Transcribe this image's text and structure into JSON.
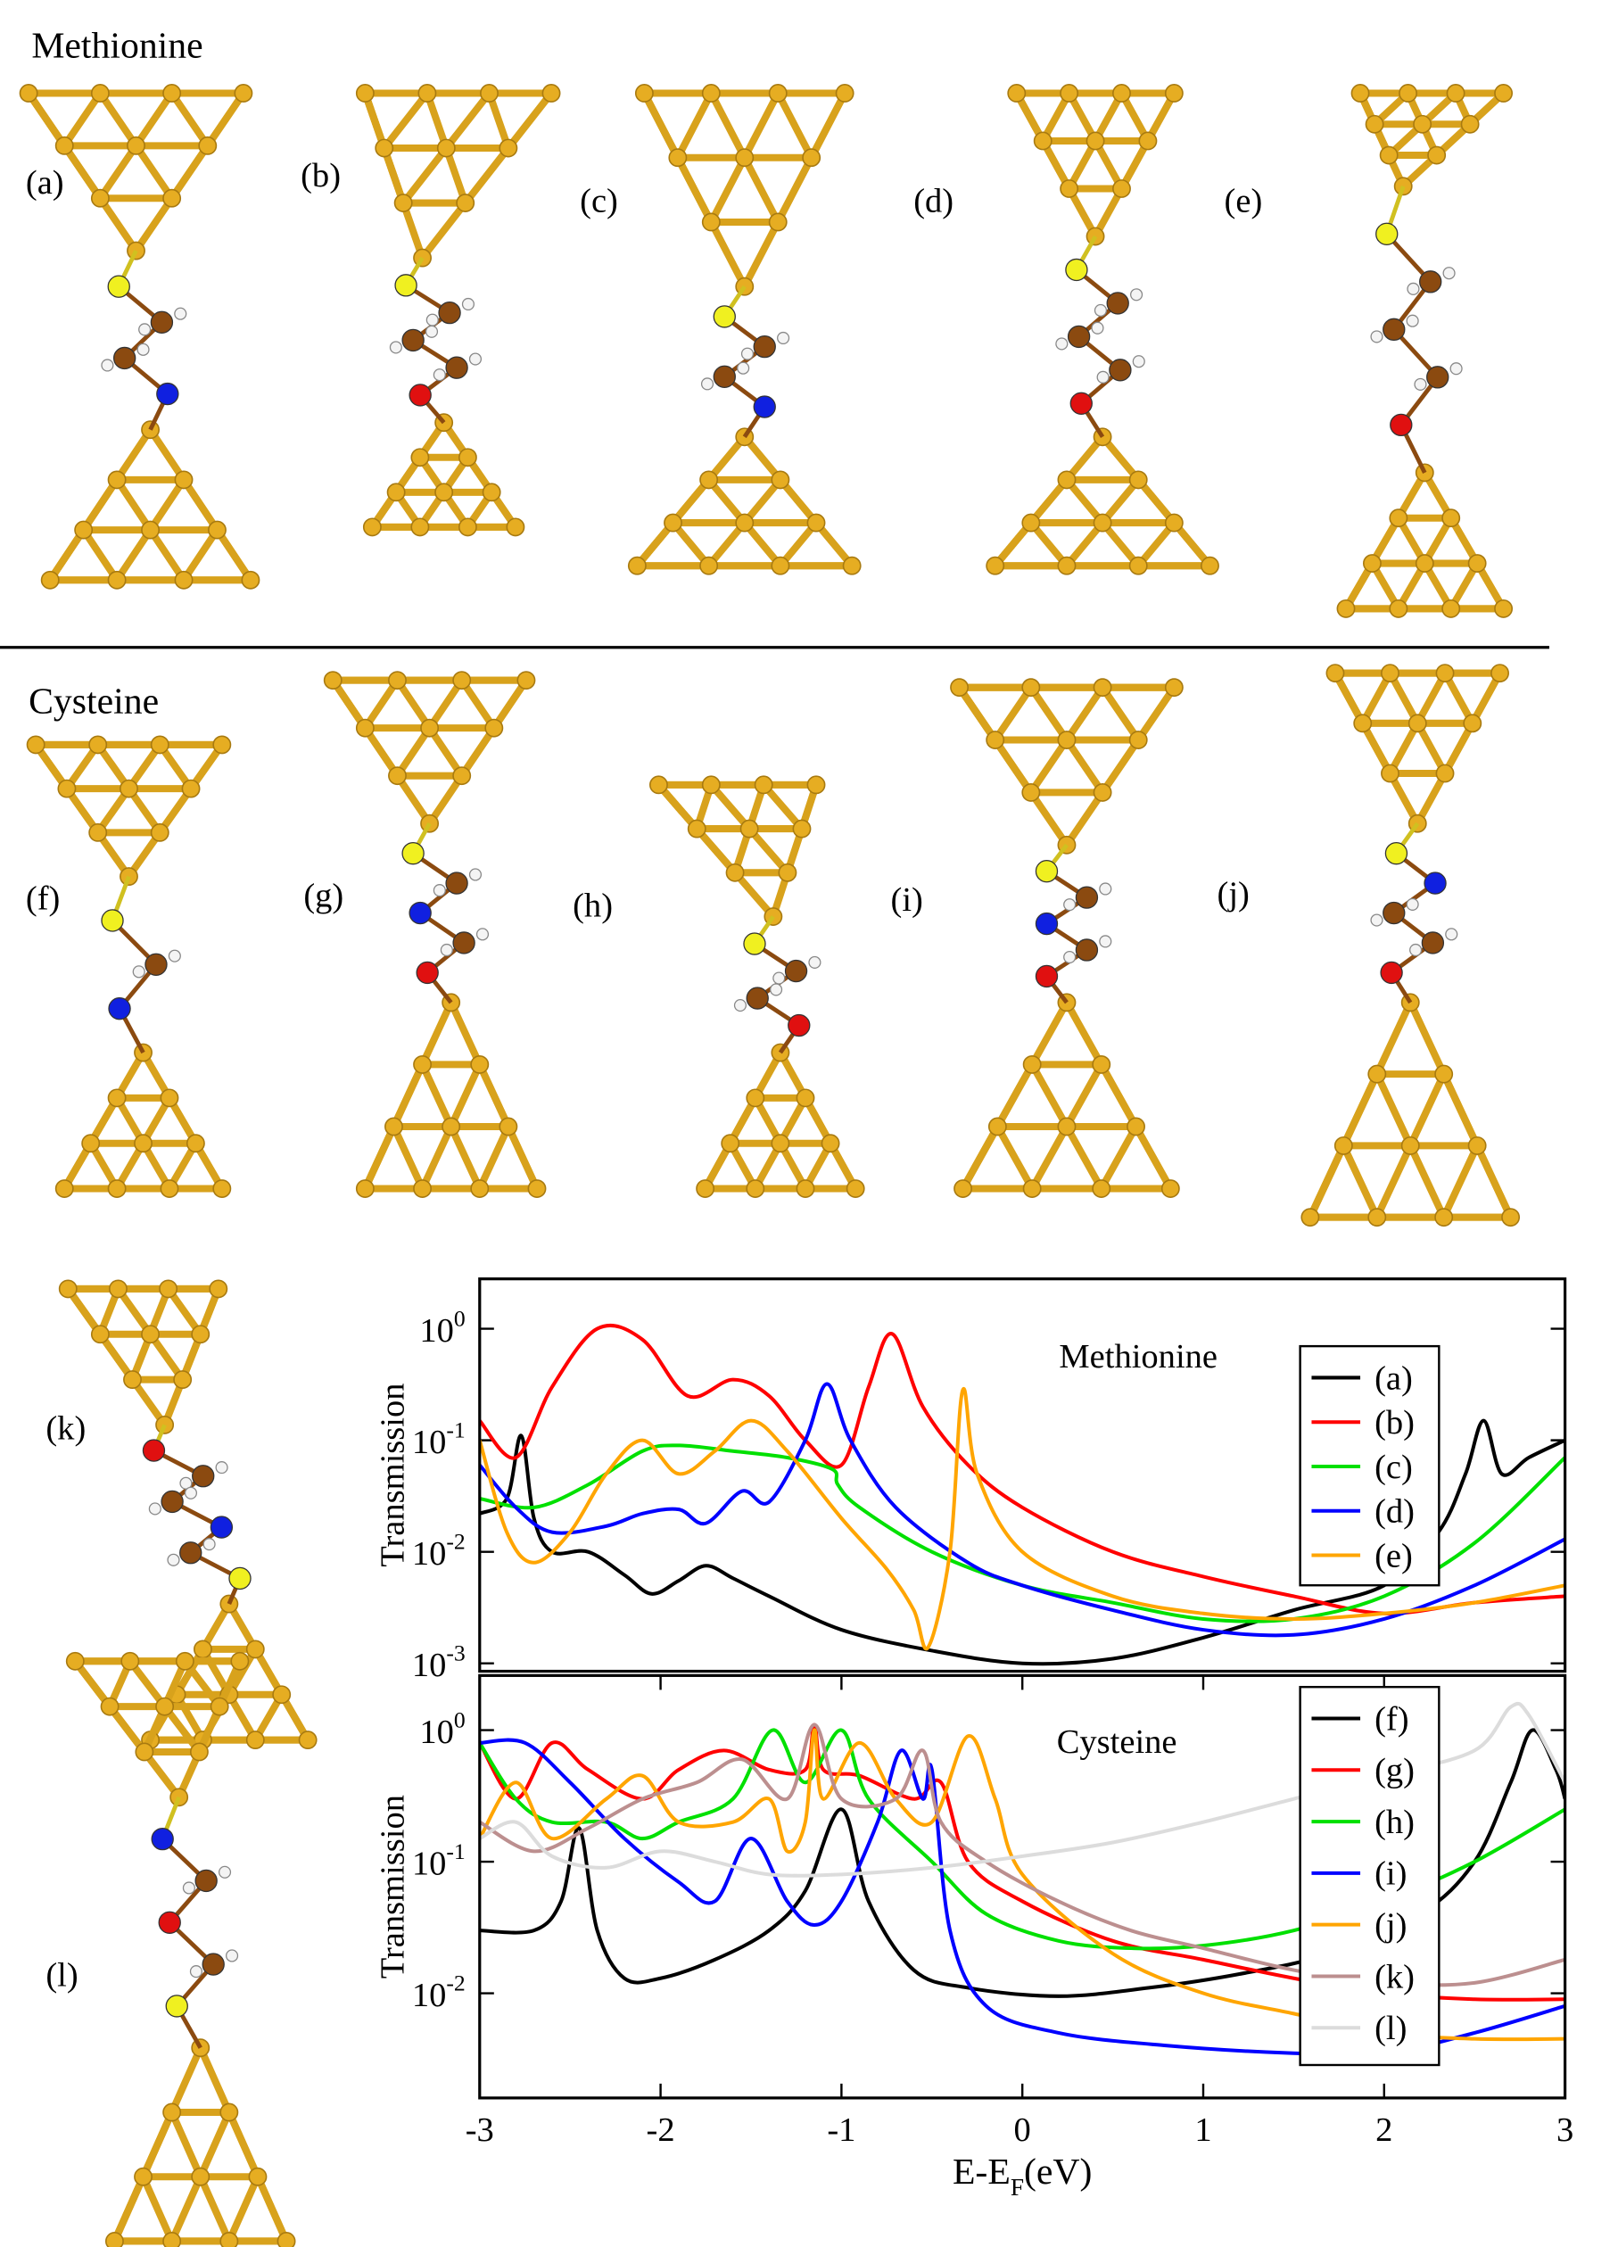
{
  "headings": [
    "Methionine",
    "Cysteine"
  ],
  "panels": [
    "(a)",
    "(b)",
    "(c)",
    "(d)",
    "(e)",
    "(f)",
    "(g)",
    "(h)",
    "(i)",
    "(j)",
    "(k)",
    "(l)"
  ],
  "chart_data": [
    {
      "type": "line",
      "title": "Methionine",
      "ylabel": "Transmission",
      "log_y": true,
      "legend": "upper right",
      "xlim": [
        -3,
        3
      ],
      "ylim": [
        0.00085,
        2.8
      ],
      "yticks": [
        {
          "value": 1,
          "label": "10",
          "power": 0
        },
        {
          "value": 0.1,
          "label": "10",
          "power": -1
        },
        {
          "value": 0.01,
          "label": "10",
          "power": -2
        },
        {
          "value": 0.001,
          "label": "10",
          "power": -3
        }
      ],
      "series": [
        {
          "name": "(a)",
          "color": "#000000",
          "x": [
            -3,
            -2.85,
            -2.77,
            -2.7,
            -2.6,
            -2.4,
            -2.2,
            -2.05,
            -1.9,
            -1.75,
            -1.6,
            -1.4,
            -1,
            -0.5,
            0,
            0.5,
            1,
            1.5,
            2,
            2.3,
            2.45,
            2.55,
            2.65,
            2.8,
            3
          ],
          "values": [
            0.022,
            0.03,
            0.11,
            0.02,
            0.01,
            0.01,
            0.0062,
            0.0042,
            0.0055,
            0.0075,
            0.0058,
            0.004,
            0.002,
            0.0013,
            0.001,
            0.0011,
            0.0017,
            0.003,
            0.005,
            0.015,
            0.05,
            0.15,
            0.05,
            0.07,
            0.1
          ]
        },
        {
          "name": "(b)",
          "color": "#ff0000",
          "x": [
            -3,
            -2.8,
            -2.6,
            -2.35,
            -2.1,
            -1.85,
            -1.6,
            -1.4,
            -1.2,
            -1,
            -0.85,
            -0.72,
            -0.55,
            -0.3,
            0,
            0.5,
            1,
            1.5,
            2,
            2.5,
            3
          ],
          "values": [
            0.15,
            0.07,
            0.3,
            1.0,
            0.8,
            0.25,
            0.35,
            0.25,
            0.1,
            0.06,
            0.3,
            0.9,
            0.2,
            0.06,
            0.025,
            0.01,
            0.006,
            0.004,
            0.0028,
            0.0035,
            0.004
          ]
        },
        {
          "name": "(c)",
          "color": "#00e000",
          "x": [
            -3,
            -2.7,
            -2.4,
            -2.1,
            -1.9,
            -1.6,
            -1.3,
            -1.05,
            -1.02,
            -0.9,
            -0.5,
            0,
            0.5,
            1,
            1.5,
            2,
            2.5,
            3
          ],
          "values": [
            0.03,
            0.025,
            0.04,
            0.08,
            0.09,
            0.08,
            0.07,
            0.055,
            0.04,
            0.025,
            0.01,
            0.005,
            0.0035,
            0.0025,
            0.0025,
            0.004,
            0.012,
            0.07
          ]
        },
        {
          "name": "(d)",
          "color": "#0000ff",
          "x": [
            -3,
            -2.8,
            -2.6,
            -2.3,
            -2.1,
            -1.9,
            -1.75,
            -1.55,
            -1.4,
            -1.2,
            -1.08,
            -0.95,
            -0.7,
            -0.3,
            0,
            0.5,
            1,
            1.5,
            2,
            2.5,
            3
          ],
          "values": [
            0.06,
            0.025,
            0.015,
            0.017,
            0.022,
            0.024,
            0.018,
            0.035,
            0.028,
            0.1,
            0.32,
            0.1,
            0.025,
            0.008,
            0.005,
            0.003,
            0.002,
            0.0018,
            0.0025,
            0.005,
            0.013
          ]
        },
        {
          "name": "(e)",
          "color": "#ffa500",
          "x": [
            -3,
            -2.85,
            -2.7,
            -2.5,
            -2.3,
            -2.1,
            -1.9,
            -1.7,
            -1.5,
            -1.3,
            -1,
            -0.75,
            -0.6,
            -0.52,
            -0.4,
            -0.33,
            -0.25,
            0,
            0.5,
            1,
            1.5,
            2,
            2.5,
            3
          ],
          "values": [
            0.1,
            0.015,
            0.008,
            0.015,
            0.05,
            0.1,
            0.05,
            0.08,
            0.15,
            0.08,
            0.02,
            0.007,
            0.003,
            0.0014,
            0.01,
            0.28,
            0.05,
            0.01,
            0.004,
            0.0028,
            0.0025,
            0.0028,
            0.0035,
            0.005
          ]
        }
      ]
    },
    {
      "type": "line",
      "title": "Cysteine",
      "ylabel": "Transmission",
      "xlabel": [
        "E-E",
        "F",
        "(eV)"
      ],
      "log_y": true,
      "legend": "upper right",
      "xlim": [
        -3,
        3
      ],
      "xticks": [
        -3,
        -2,
        -1,
        0,
        1,
        2,
        3
      ],
      "ylim": [
        0.0016,
        2.6
      ],
      "yticks": [
        {
          "value": 1,
          "label": "10",
          "power": 0
        },
        {
          "value": 0.1,
          "label": "10",
          "power": -1
        },
        {
          "value": 0.01,
          "label": "10",
          "power": -2
        }
      ],
      "series": [
        {
          "name": "(f)",
          "color": "#000000",
          "x": [
            -3,
            -2.7,
            -2.55,
            -2.45,
            -2.35,
            -2.2,
            -2,
            -1.7,
            -1.4,
            -1.2,
            -1,
            -0.85,
            -0.6,
            -0.3,
            0.2,
            0.7,
            1.2,
            1.7,
            2.2,
            2.5,
            2.7,
            2.82,
            2.95,
            3
          ],
          "values": [
            0.03,
            0.03,
            0.05,
            0.18,
            0.03,
            0.013,
            0.013,
            0.018,
            0.03,
            0.06,
            0.25,
            0.05,
            0.015,
            0.011,
            0.0095,
            0.011,
            0.014,
            0.02,
            0.04,
            0.1,
            0.4,
            1.0,
            0.5,
            0.3
          ]
        },
        {
          "name": "(g)",
          "color": "#ff0000",
          "x": [
            -3,
            -2.8,
            -2.6,
            -2.4,
            -2.1,
            -1.9,
            -1.65,
            -1.4,
            -1.2,
            -1.15,
            -1.1,
            -0.9,
            -0.6,
            -0.45,
            -0.3,
            0,
            0.5,
            1,
            1.5,
            2,
            2.5,
            3
          ],
          "values": [
            0.8,
            0.3,
            0.8,
            0.5,
            0.3,
            0.5,
            0.7,
            0.5,
            0.5,
            1.1,
            0.5,
            0.45,
            0.3,
            0.4,
            0.1,
            0.05,
            0.025,
            0.018,
            0.013,
            0.01,
            0.009,
            0.009
          ]
        },
        {
          "name": "(h)",
          "color": "#00e000",
          "x": [
            -3,
            -2.8,
            -2.6,
            -2.3,
            -2.1,
            -1.9,
            -1.6,
            -1.38,
            -1.2,
            -1,
            -0.85,
            -0.5,
            -0.2,
            0.2,
            0.6,
            1,
            1.5,
            2,
            2.5,
            3
          ],
          "values": [
            0.8,
            0.3,
            0.2,
            0.2,
            0.15,
            0.2,
            0.3,
            1.0,
            0.4,
            1.0,
            0.3,
            0.1,
            0.04,
            0.025,
            0.022,
            0.023,
            0.03,
            0.05,
            0.1,
            0.25
          ]
        },
        {
          "name": "(i)",
          "color": "#0000ff",
          "x": [
            -3,
            -2.75,
            -2.5,
            -2.2,
            -1.9,
            -1.7,
            -1.5,
            -1.3,
            -1.15,
            -1,
            -0.8,
            -0.67,
            -0.55,
            -0.5,
            -0.4,
            -0.2,
            0.2,
            0.8,
            1.5,
            2,
            2.5,
            3
          ],
          "values": [
            0.8,
            0.8,
            0.4,
            0.15,
            0.07,
            0.05,
            0.15,
            0.05,
            0.033,
            0.05,
            0.2,
            0.7,
            0.3,
            0.5,
            0.03,
            0.008,
            0.005,
            0.004,
            0.0035,
            0.0035,
            0.005,
            0.008
          ]
        },
        {
          "name": "(j)",
          "color": "#ffa500",
          "x": [
            -3,
            -2.8,
            -2.6,
            -2.3,
            -2.1,
            -1.9,
            -1.6,
            -1.4,
            -1.3,
            -1.2,
            -1.15,
            -1.1,
            -0.9,
            -0.7,
            -0.5,
            -0.3,
            -0.15,
            0,
            0.5,
            1,
            1.5,
            2,
            2.5,
            3
          ],
          "values": [
            0.15,
            0.4,
            0.15,
            0.3,
            0.45,
            0.2,
            0.2,
            0.3,
            0.12,
            0.2,
            1.0,
            0.3,
            0.8,
            0.3,
            0.2,
            0.9,
            0.3,
            0.08,
            0.02,
            0.01,
            0.007,
            0.005,
            0.0045,
            0.0045
          ]
        },
        {
          "name": "(k)",
          "color": "#bc8f8f",
          "x": [
            -3,
            -2.7,
            -2.4,
            -2.1,
            -1.8,
            -1.55,
            -1.3,
            -1.15,
            -1,
            -0.7,
            -0.55,
            -0.45,
            -0.2,
            0.2,
            0.6,
            1,
            1.5,
            2,
            2.5,
            3
          ],
          "values": [
            0.2,
            0.12,
            0.18,
            0.3,
            0.4,
            0.6,
            0.3,
            1.1,
            0.3,
            0.3,
            0.7,
            0.2,
            0.1,
            0.05,
            0.03,
            0.022,
            0.015,
            0.012,
            0.012,
            0.018
          ]
        },
        {
          "name": "(l)",
          "color": "#dcdcdc",
          "x": [
            -3,
            -2.8,
            -2.6,
            -2.3,
            -2,
            -1.7,
            -1.4,
            -1,
            -0.5,
            0,
            0.5,
            1,
            1.5,
            2,
            2.5,
            2.7,
            2.8,
            3
          ],
          "values": [
            0.15,
            0.2,
            0.11,
            0.09,
            0.12,
            0.1,
            0.08,
            0.08,
            0.09,
            0.11,
            0.14,
            0.2,
            0.3,
            0.45,
            0.7,
            1.5,
            1.3,
            0.4
          ]
        }
      ]
    }
  ]
}
